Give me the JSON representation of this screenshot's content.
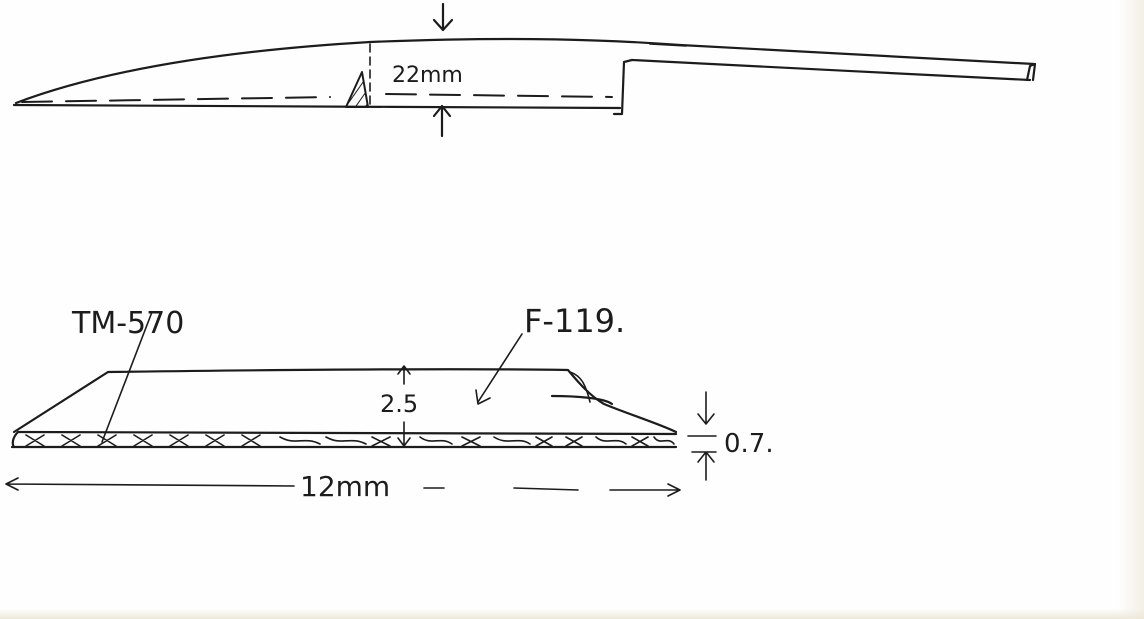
{
  "side_view": {
    "width_label": "22mm"
  },
  "cross_section": {
    "core_material_label": "TM-570",
    "coating_material_label": "F-119.",
    "total_height_label": "2.5",
    "core_thickness_label": "0.7.",
    "width_label": "12mm"
  }
}
